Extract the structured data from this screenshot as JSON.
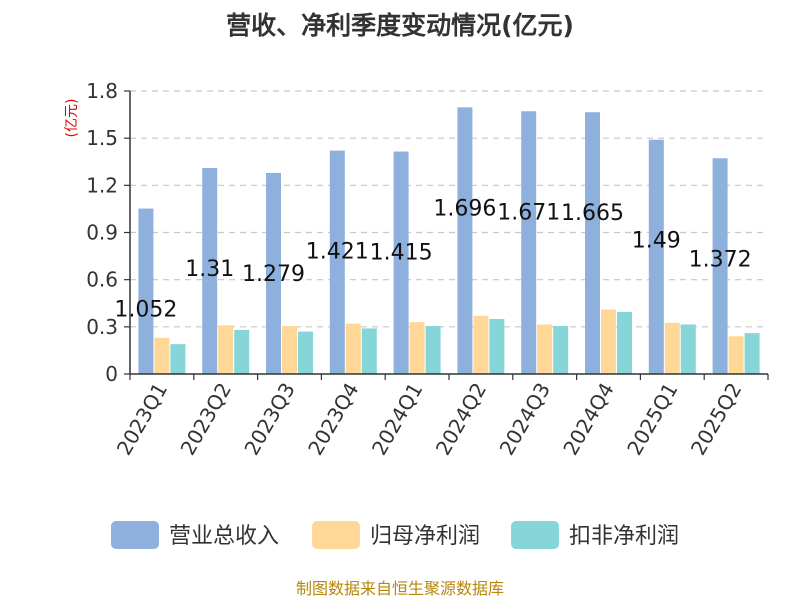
{
  "chart_data": {
    "type": "bar",
    "title": "营收、净利季度变动情况(亿元)",
    "unit_label": "(亿元)",
    "categories": [
      "2023Q1",
      "2023Q2",
      "2023Q3",
      "2023Q4",
      "2024Q1",
      "2024Q2",
      "2024Q3",
      "2024Q4",
      "2025Q1",
      "2025Q2"
    ],
    "series": [
      {
        "name": "营业总收入",
        "color": "#8eb0dc",
        "values": [
          1.052,
          1.31,
          1.279,
          1.421,
          1.415,
          1.696,
          1.671,
          1.665,
          1.49,
          1.372
        ],
        "labels": [
          "1.052",
          "1.31",
          "1.279",
          "1.421",
          "1.415",
          "1.696",
          "1.671",
          "1.665",
          "1.49",
          "1.372"
        ]
      },
      {
        "name": "归母净利润",
        "color": "#ffd897",
        "values": [
          0.23,
          0.31,
          0.305,
          0.32,
          0.33,
          0.37,
          0.315,
          0.41,
          0.325,
          0.24
        ]
      },
      {
        "name": "扣非净利润",
        "color": "#86d5d9",
        "values": [
          0.19,
          0.28,
          0.27,
          0.29,
          0.305,
          0.35,
          0.305,
          0.395,
          0.315,
          0.26
        ]
      }
    ],
    "ylim": [
      0,
      1.8
    ],
    "yticks": [
      "0",
      "0.3",
      "0.6",
      "0.9",
      "1.2",
      "1.5",
      "1.8"
    ],
    "grid": true,
    "legend_position": "bottom",
    "source": "制图数据来自恒生聚源数据库"
  }
}
